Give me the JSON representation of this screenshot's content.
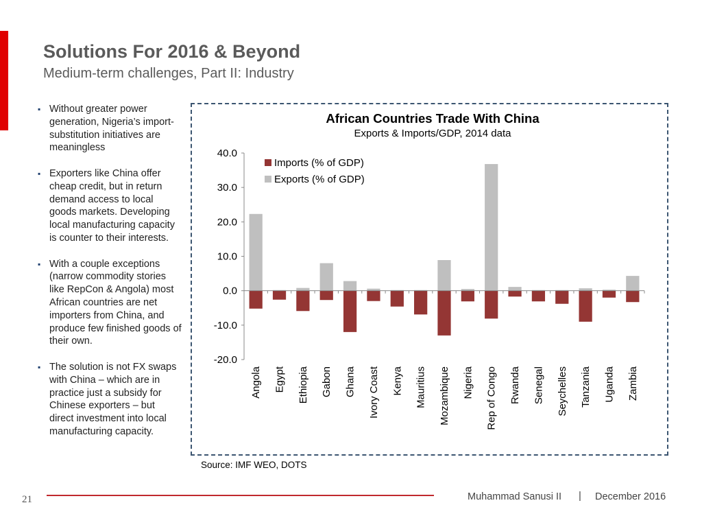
{
  "slide": {
    "title": "Solutions For 2016 & Beyond",
    "subtitle": "Medium-term challenges, Part II: Industry",
    "bullets": [
      "Without greater power generation, Nigeria’s import-substitution initiatives are meaningless",
      "Exporters like China offer cheap credit, but in return demand access to local goods markets. Developing local manufacturing capacity is counter to their interests.",
      "With a couple exceptions (narrow commodity stories like RepCon & Angola) most African countries are net importers from China, and produce few finished goods of their own.",
      "The solution is not FX swaps with China – which are in practice just a subsidy for Chinese exporters – but direct investment into local manufacturing capacity."
    ],
    "source": "Source: IMF WEO, DOTS"
  },
  "footer": {
    "page": "21",
    "author": "Muhammad Sanusi II",
    "separator": "|",
    "date": "December 2016"
  },
  "colors": {
    "imports": "#943634",
    "exports": "#bfbfbf",
    "accent": "#e00000"
  },
  "chart_data": {
    "type": "bar",
    "title": "African Countries Trade With China",
    "subtitle": "Exports & Imports/GDP, 2014 data",
    "categories": [
      "Angola",
      "Egypt",
      "Ethiopia",
      "Gabon",
      "Ghana",
      "Ivory Coast",
      "Kenya",
      "Mauritius",
      "Mozambique",
      "Nigeria",
      "Rep of Congo",
      "Rwanda",
      "Senegal",
      "Seychelles",
      "Tanzania",
      "Uganda",
      "Zambia"
    ],
    "series": [
      {
        "name": "Imports (% of GDP)",
        "values": [
          -5.2,
          -2.6,
          -5.9,
          -2.7,
          -12.0,
          -3.0,
          -4.6,
          -6.9,
          -13.0,
          -3.1,
          -8.1,
          -1.7,
          -3.1,
          -3.8,
          -9.0,
          -2.0,
          -3.3
        ]
      },
      {
        "name": "Exports (% of GDP)",
        "values": [
          22.3,
          0.2,
          0.8,
          8.0,
          2.8,
          0.6,
          0.2,
          0.2,
          8.9,
          0.5,
          36.8,
          1.1,
          0.2,
          0.2,
          0.7,
          0.3,
          4.3
        ]
      }
    ],
    "ylim": [
      -20,
      40
    ],
    "yticks": [
      "-20.0",
      "-10.0",
      "0.0",
      "10.0",
      "20.0",
      "30.0",
      "40.0"
    ],
    "xlabel": "",
    "ylabel": "",
    "legend": "top-left",
    "grid": false
  }
}
